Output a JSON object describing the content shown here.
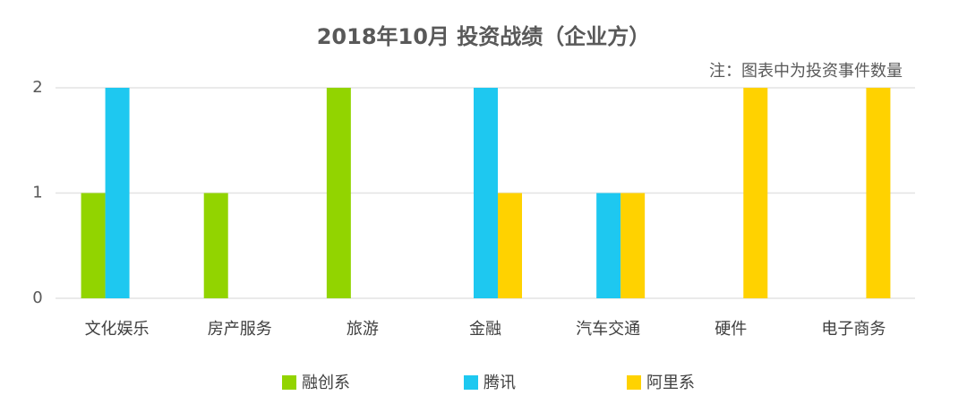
{
  "chart_data": {
    "type": "bar",
    "title": "2018年10月 投资战绩（企业方）",
    "annotation": "注：图表中为投资事件数量",
    "categories": [
      "文化娱乐",
      "房产服务",
      "旅游",
      "金融",
      "汽车交通",
      "硬件",
      "电子商务"
    ],
    "series": [
      {
        "name": "融创系",
        "color": "#92d400",
        "values": [
          1,
          1,
          2,
          0,
          0,
          0,
          0
        ]
      },
      {
        "name": "腾讯",
        "color": "#1ec8f0",
        "values": [
          2,
          0,
          0,
          2,
          1,
          0,
          0
        ]
      },
      {
        "name": "阿里系",
        "color": "#ffd200",
        "values": [
          0,
          0,
          0,
          1,
          1,
          2,
          2
        ]
      }
    ],
    "ylim": [
      0,
      2
    ],
    "yticks": [
      0,
      1,
      2
    ],
    "grid": true,
    "legend": "bottom"
  }
}
